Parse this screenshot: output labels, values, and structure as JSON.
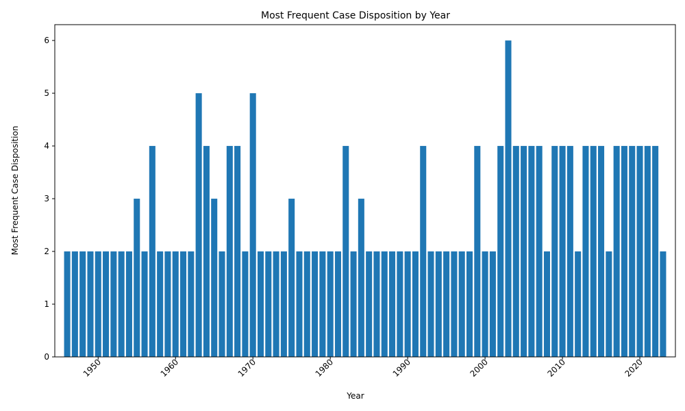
{
  "chart_data": {
    "type": "bar",
    "title": "Most Frequent Case Disposition by Year",
    "xlabel": "Year",
    "ylabel": "Most Frequent Case Disposition",
    "x": [
      1946,
      1947,
      1948,
      1949,
      1950,
      1951,
      1952,
      1953,
      1954,
      1955,
      1956,
      1957,
      1958,
      1959,
      1960,
      1961,
      1962,
      1963,
      1964,
      1965,
      1966,
      1967,
      1968,
      1969,
      1970,
      1971,
      1972,
      1973,
      1974,
      1975,
      1976,
      1977,
      1978,
      1979,
      1980,
      1981,
      1982,
      1983,
      1984,
      1985,
      1986,
      1987,
      1988,
      1989,
      1990,
      1991,
      1992,
      1993,
      1994,
      1995,
      1996,
      1997,
      1998,
      1999,
      2000,
      2001,
      2002,
      2003,
      2004,
      2005,
      2006,
      2007,
      2008,
      2009,
      2010,
      2011,
      2012,
      2013,
      2014,
      2015,
      2016,
      2017,
      2018,
      2019,
      2020,
      2021,
      2022,
      2023
    ],
    "values": [
      2,
      2,
      2,
      2,
      2,
      2,
      2,
      2,
      2,
      3,
      2,
      4,
      2,
      2,
      2,
      2,
      2,
      5,
      4,
      3,
      2,
      4,
      4,
      2,
      5,
      2,
      2,
      2,
      2,
      3,
      2,
      2,
      2,
      2,
      2,
      2,
      4,
      2,
      3,
      2,
      2,
      2,
      2,
      2,
      2,
      2,
      4,
      2,
      2,
      2,
      2,
      2,
      2,
      4,
      2,
      2,
      4,
      6,
      4,
      4,
      4,
      4,
      2,
      4,
      4,
      4,
      2,
      4,
      4,
      4,
      2,
      4,
      4,
      4,
      4,
      4,
      4,
      2
    ],
    "xticks": [
      1950,
      1960,
      1970,
      1980,
      1990,
      2000,
      2010,
      2020
    ],
    "yticks": [
      0,
      1,
      2,
      3,
      4,
      5,
      6
    ],
    "xlim": [
      1944.4,
      2024.6
    ],
    "ylim": [
      0,
      6.3
    ],
    "bar_color": "#1f77b4",
    "grid": false,
    "legend": "none"
  }
}
